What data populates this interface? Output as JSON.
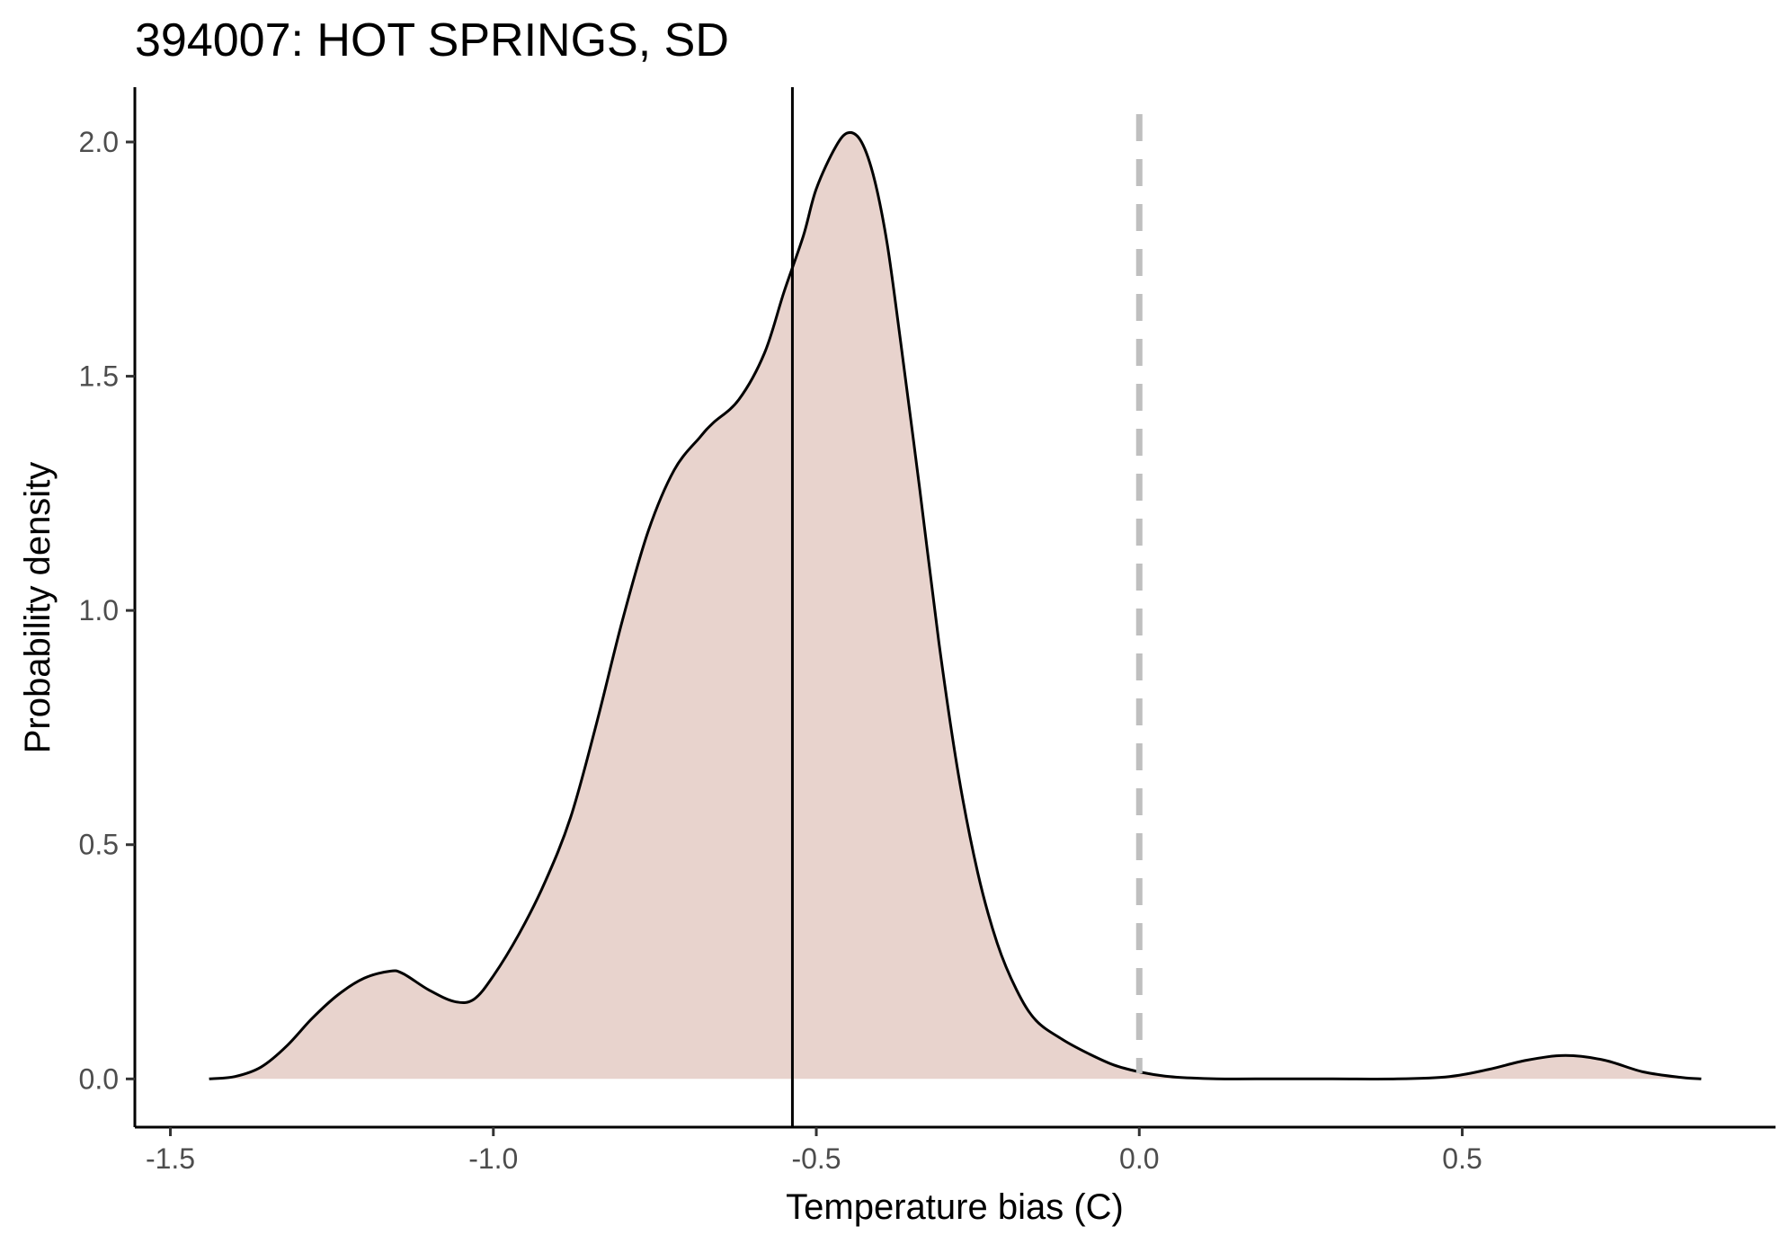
{
  "chart_data": {
    "type": "area",
    "title": "394007: HOT SPRINGS, SD",
    "xlabel": "Temperature bias (C)",
    "ylabel": "Probability density",
    "xlim": [
      -1.555,
      0.985
    ],
    "ylim": [
      -0.103,
      2.117
    ],
    "x_ticks": [
      -1.5,
      -1.0,
      -0.5,
      0.0,
      0.5
    ],
    "x_tick_labels": [
      "-1.5",
      "-1.0",
      "-0.5",
      "0.0",
      "0.5"
    ],
    "y_ticks": [
      0.0,
      0.5,
      1.0,
      1.5,
      2.0
    ],
    "y_tick_labels": [
      "0.0",
      "0.5",
      "1.0",
      "1.5",
      "2.0"
    ],
    "grid": false,
    "legend": "none",
    "fill_color": "#e8d3cd",
    "line_color": "#000000",
    "series": [
      {
        "x": [
          -1.44,
          -1.4,
          -1.36,
          -1.32,
          -1.28,
          -1.24,
          -1.2,
          -1.16,
          -1.14,
          -1.1,
          -1.06,
          -1.03,
          -1.0,
          -0.96,
          -0.92,
          -0.88,
          -0.84,
          -0.8,
          -0.76,
          -0.72,
          -0.68,
          -0.66,
          -0.62,
          -0.58,
          -0.55,
          -0.52,
          -0.5,
          -0.47,
          -0.45,
          -0.43,
          -0.41,
          -0.39,
          -0.37,
          -0.34,
          -0.31,
          -0.28,
          -0.25,
          -0.22,
          -0.19,
          -0.16,
          -0.12,
          -0.08,
          -0.04,
          0.0,
          0.04,
          0.08,
          0.12,
          0.18,
          0.3,
          0.4,
          0.48,
          0.54,
          0.6,
          0.66,
          0.72,
          0.78,
          0.84,
          0.87
        ],
        "y": [
          0.0,
          0.005,
          0.025,
          0.07,
          0.13,
          0.18,
          0.215,
          0.23,
          0.225,
          0.19,
          0.165,
          0.17,
          0.22,
          0.31,
          0.42,
          0.56,
          0.76,
          0.98,
          1.17,
          1.3,
          1.37,
          1.4,
          1.45,
          1.55,
          1.68,
          1.8,
          1.9,
          1.99,
          2.02,
          2.0,
          1.92,
          1.78,
          1.58,
          1.26,
          0.93,
          0.65,
          0.44,
          0.29,
          0.19,
          0.125,
          0.085,
          0.055,
          0.03,
          0.015,
          0.006,
          0.002,
          0.0,
          0.0,
          0.0,
          0.0,
          0.005,
          0.02,
          0.04,
          0.05,
          0.04,
          0.015,
          0.003,
          0.0
        ]
      }
    ],
    "vlines": [
      {
        "x": -0.537,
        "style": "solid",
        "color": "#000000"
      },
      {
        "x": 0.0,
        "style": "dashed",
        "color": "#bfbfbf"
      }
    ]
  }
}
